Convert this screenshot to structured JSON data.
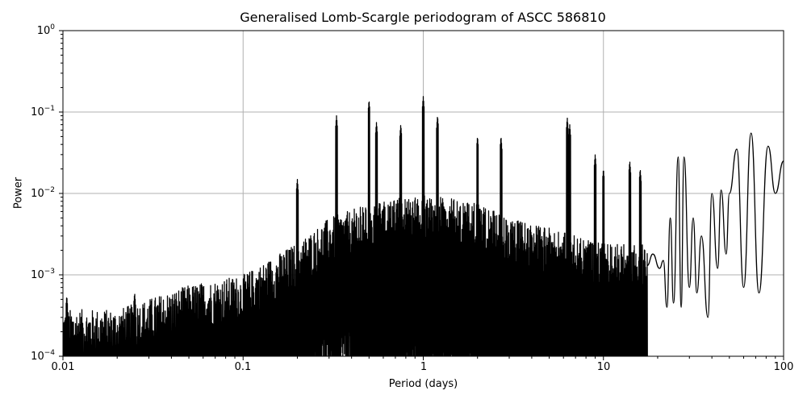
{
  "chart_data": {
    "type": "line",
    "title": "Generalised Lomb-Scargle periodogram of ASCC 586810",
    "xlabel": "Period (days)",
    "ylabel": "Power",
    "xscale": "log",
    "yscale": "log",
    "xlim": [
      0.01,
      100
    ],
    "ylim": [
      0.0001,
      1
    ],
    "grid": true,
    "legend": null,
    "x_ticks": [
      "0.01",
      "0.1",
      "1",
      "10",
      "100"
    ],
    "y_ticks": [
      {
        "base": "10",
        "exp": "0",
        "value": 1
      },
      {
        "base": "10",
        "exp": "−1",
        "value": 0.1
      },
      {
        "base": "10",
        "exp": "−2",
        "value": 0.01
      },
      {
        "base": "10",
        "exp": "−3",
        "value": 0.001
      },
      {
        "base": "10",
        "exp": "−4",
        "value": 0.0001
      }
    ],
    "envelope": {
      "description": "Upper envelope of dense noise floor (approx.)",
      "x": [
        0.01,
        0.02,
        0.05,
        0.1,
        0.2,
        0.3,
        0.5,
        1,
        2,
        3,
        5,
        10
      ],
      "y": [
        0.0003,
        0.0003,
        0.0006,
        0.0008,
        0.002,
        0.004,
        0.006,
        0.008,
        0.006,
        0.004,
        0.003,
        0.002
      ]
    },
    "notable_peaks": [
      {
        "x": 0.0105,
        "y": 0.00055
      },
      {
        "x": 0.025,
        "y": 0.0006
      },
      {
        "x": 0.2,
        "y": 0.015
      },
      {
        "x": 0.33,
        "y": 0.09
      },
      {
        "x": 0.5,
        "y": 0.14
      },
      {
        "x": 0.55,
        "y": 0.075
      },
      {
        "x": 0.75,
        "y": 0.07
      },
      {
        "x": 1.0,
        "y": 0.155
      },
      {
        "x": 1.2,
        "y": 0.09
      },
      {
        "x": 2.0,
        "y": 0.05
      },
      {
        "x": 2.7,
        "y": 0.05
      },
      {
        "x": 6.3,
        "y": 0.085
      },
      {
        "x": 6.5,
        "y": 0.07
      },
      {
        "x": 9.0,
        "y": 0.03
      },
      {
        "x": 10.0,
        "y": 0.02
      },
      {
        "x": 14.0,
        "y": 0.025
      },
      {
        "x": 16.0,
        "y": 0.02
      }
    ],
    "low_freq_curve": {
      "description": "Resolved oscillations at long periods (approx. local maxima/minima)",
      "x": [
        17.5,
        18.8,
        20.5,
        21.5,
        22.5,
        23.5,
        24.5,
        26,
        27,
        28,
        30,
        31.5,
        33,
        35,
        38,
        40,
        43,
        45,
        48,
        50,
        55,
        60,
        66,
        73,
        82,
        90,
        100
      ],
      "y": [
        0.0013,
        0.0018,
        0.0012,
        0.0015,
        0.0004,
        0.005,
        0.00045,
        0.028,
        0.0004,
        0.028,
        0.0007,
        0.005,
        0.0006,
        0.003,
        0.0003,
        0.01,
        0.0012,
        0.011,
        0.0018,
        0.01,
        0.035,
        0.0007,
        0.055,
        0.0006,
        0.038,
        0.01,
        0.025
      ]
    }
  }
}
